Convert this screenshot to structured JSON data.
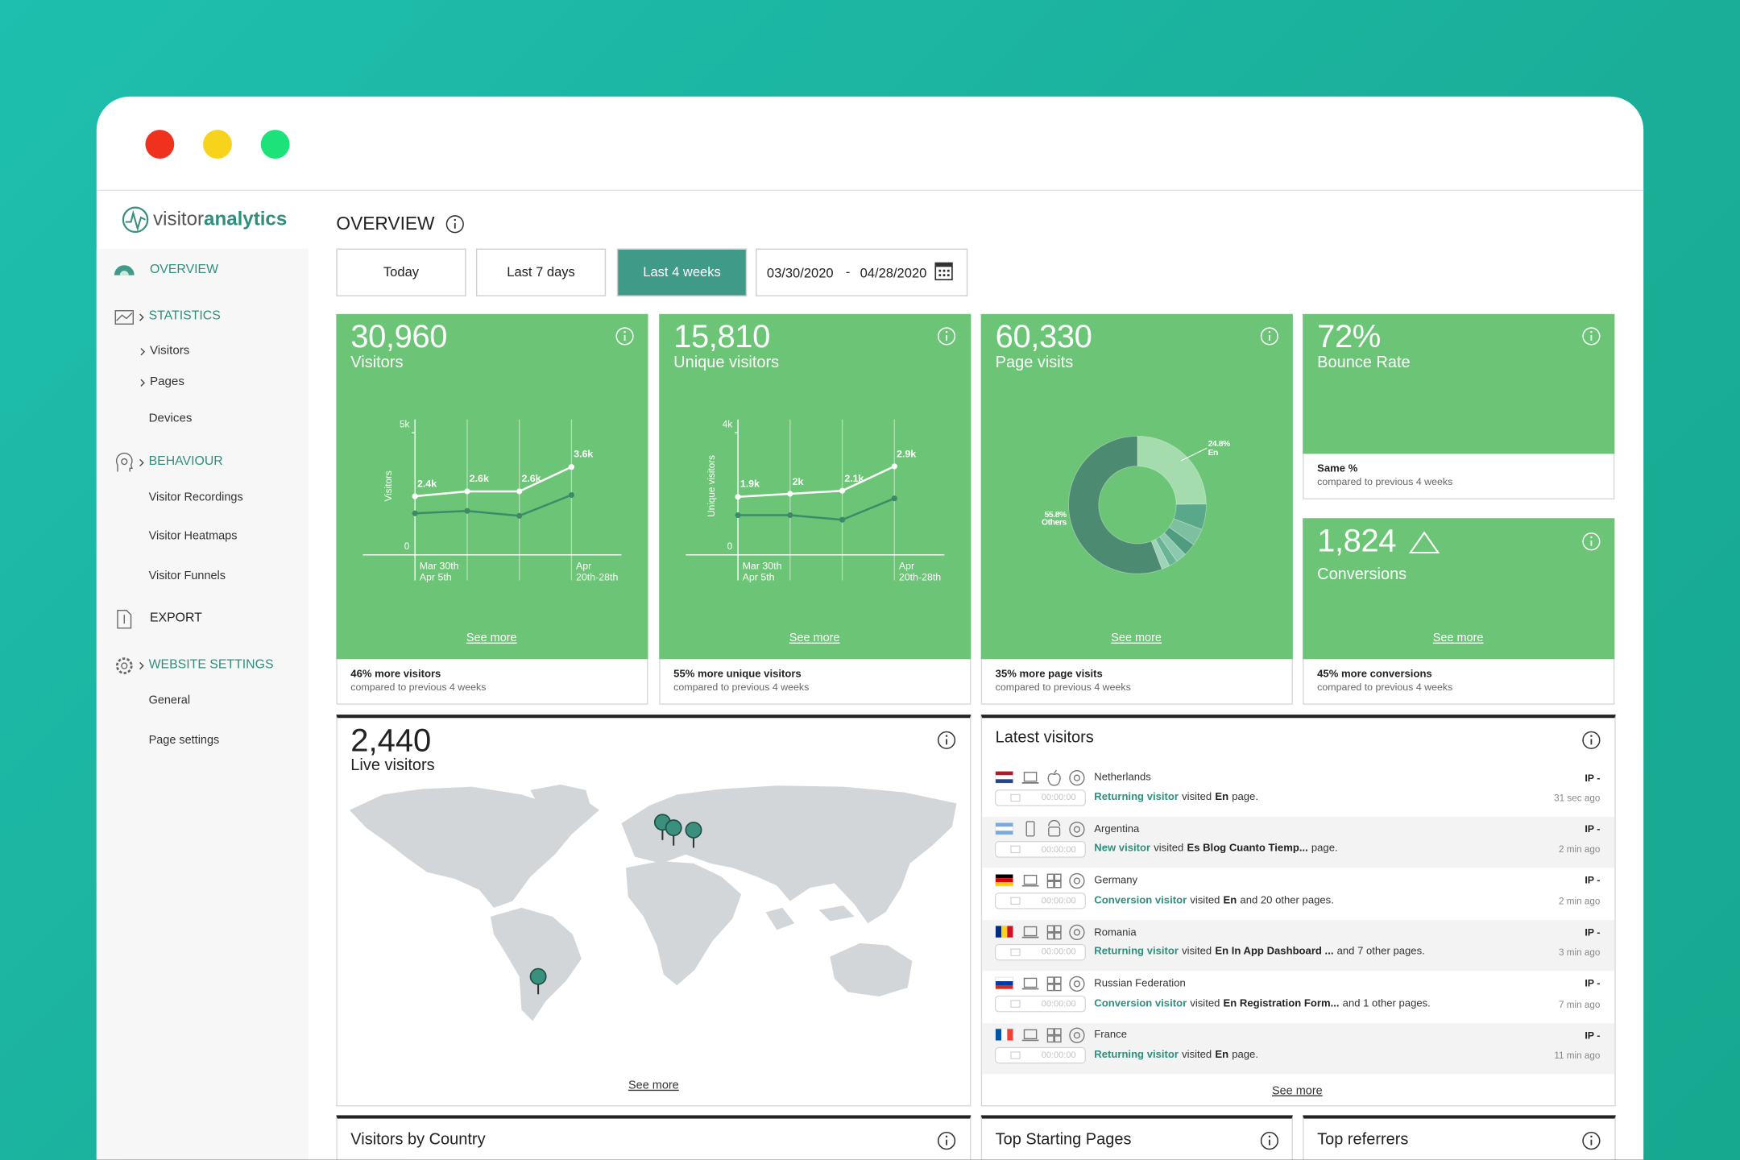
{
  "window": {
    "controls": [
      "#f0311e",
      "#f8d31c",
      "#1de27a"
    ]
  },
  "logo": {
    "light": "visitor",
    "bold": "analytics"
  },
  "sidebar": [
    {
      "label": "OVERVIEW",
      "kind": "section"
    },
    {
      "label": "STATISTICS",
      "kind": "section"
    },
    {
      "label": "Visitors",
      "kind": "item"
    },
    {
      "label": "Pages",
      "kind": "item"
    },
    {
      "label": "Devices",
      "kind": "item"
    },
    {
      "label": "BEHAVIOUR",
      "kind": "section"
    },
    {
      "label": "Visitor Recordings",
      "kind": "item"
    },
    {
      "label": "Visitor Heatmaps",
      "kind": "item"
    },
    {
      "label": "Visitor Funnels",
      "kind": "item"
    },
    {
      "label": "EXPORT",
      "kind": "section"
    },
    {
      "label": "WEBSITE SETTINGS",
      "kind": "section"
    },
    {
      "label": "General",
      "kind": "item"
    },
    {
      "label": "Page settings",
      "kind": "item"
    }
  ],
  "header": {
    "title": "OVERVIEW"
  },
  "filters": {
    "buttons": [
      {
        "label": "Today"
      },
      {
        "label": "Last 7 days"
      },
      {
        "label": "Last 4 weeks",
        "active": true
      }
    ],
    "date_from": "03/30/2020",
    "separator": "-",
    "date_to": "04/28/2020"
  },
  "cards": [
    {
      "value": "30,960",
      "label": "Visitors",
      "link": "See more",
      "footer_bold": "46% more visitors",
      "footer": "compared to previous 4 weeks",
      "chart": {
        "type": "line",
        "y_label": "Visitors",
        "categories": [
          "Mar 30th\nApr 5th",
          null,
          null,
          "Apr\n20th-28th"
        ],
        "ylim": [
          0,
          5000
        ],
        "yticks": [
          0,
          {
            "value": 5000,
            "label": "5k"
          }
        ],
        "series": [
          {
            "color": "#ffffff",
            "values": [
              2400,
              2600,
              2600,
              3600
            ],
            "value_labels": [
              "2.4k",
              "2.6k",
              "2.6k",
              "3.6k"
            ]
          },
          {
            "color": "#3d8a6a",
            "values": [
              1700,
              1800,
              1600,
              2450
            ]
          }
        ]
      }
    },
    {
      "value": "15,810",
      "label": "Unique visitors",
      "link": "See more",
      "footer_bold": "55% more unique visitors",
      "footer": "compared to previous 4 weeks",
      "chart": {
        "type": "line",
        "y_label": "Unique visitors",
        "categories": [
          "Mar 30th\nApr 5th",
          null,
          null,
          "Apr\n20th-28th"
        ],
        "ylim": [
          0,
          4000
        ],
        "yticks": [
          0,
          {
            "value": 4000,
            "label": "4k"
          }
        ],
        "series": [
          {
            "color": "#ffffff",
            "values": [
              1900,
              2000,
              2100,
              2900
            ],
            "value_labels": [
              "1.9k",
              "2k",
              "2.1k",
              "2.9k"
            ]
          },
          {
            "color": "#3d8a6a",
            "values": [
              1300,
              1300,
              1150,
              1850
            ]
          }
        ]
      }
    },
    {
      "value": "60,330",
      "label": "Page visits",
      "link": "See more",
      "footer_bold": "35% more page visits",
      "footer": "compared to previous 4 weeks",
      "chart": {
        "type": "pie",
        "categories": [
          "En",
          null,
          null,
          null,
          null,
          null,
          null,
          "Others"
        ],
        "values": [
          24.8,
          6,
          4,
          3,
          2.5,
          2,
          1.9,
          55.8
        ],
        "value_labels": [
          "24.8%",
          null,
          null,
          null,
          null,
          null,
          null,
          "55.8%"
        ],
        "colors": [
          "#a4dcae",
          "#5aa88a",
          "#7cc0a0",
          "#4f9c80",
          "#8ccab0",
          "#6ab496",
          "#9ed3b9",
          "#4c8b71"
        ]
      }
    },
    {
      "value": "72%",
      "label": "Bounce Rate",
      "footer_bold": "Same %",
      "footer": "compared to previous 4 weeks"
    },
    {
      "value": "1,824",
      "label": "Conversions",
      "link": "See more",
      "footer_bold": "45% more conversions",
      "footer": "compared to previous 4 weeks"
    }
  ],
  "live": {
    "value": "2,440",
    "label": "Live visitors",
    "link": "See more"
  },
  "latest": {
    "title": "Latest visitors",
    "link": "See more",
    "rows": [
      {
        "flag": [
          "#ae1c28",
          "#ffffff",
          "#21468b"
        ],
        "flag_dir": "h",
        "device": "desktop",
        "os": "apple",
        "country": "Netherlands",
        "ip": "IP -",
        "duration": "00:00:00",
        "type": "Returning visitor",
        "verb": "visited",
        "page": "En",
        "rest": "page.",
        "ago": "31 sec ago"
      },
      {
        "flag": [
          "#74acdf",
          "#ffffff",
          "#74acdf"
        ],
        "flag_dir": "h",
        "device": "mobile",
        "os": "android",
        "country": "Argentina",
        "ip": "IP -",
        "duration": "00:00:00",
        "type": "New visitor",
        "verb": "visited",
        "page": "Es Blog Cuanto Tiemp...",
        "rest": "page.",
        "ago": "2 min ago"
      },
      {
        "flag": [
          "#000000",
          "#dd0000",
          "#ffce00"
        ],
        "flag_dir": "h",
        "device": "desktop",
        "os": "windows",
        "country": "Germany",
        "ip": "IP -",
        "duration": "00:00:00",
        "type": "Conversion visitor",
        "verb": "visited",
        "page": "En",
        "rest": "and 20 other pages.",
        "ago": "2 min ago"
      },
      {
        "flag": [
          "#002b7f",
          "#fcd116",
          "#ce1126"
        ],
        "flag_dir": "v",
        "device": "desktop",
        "os": "windows",
        "country": "Romania",
        "ip": "IP -",
        "duration": "00:00:00",
        "type": "Returning visitor",
        "verb": "visited",
        "page": "En In App Dashboard ...",
        "rest": "and 7 other pages.",
        "ago": "3 min ago"
      },
      {
        "flag": [
          "#ffffff",
          "#0039a6",
          "#d52b1e"
        ],
        "flag_dir": "h",
        "device": "desktop",
        "os": "windows",
        "country": "Russian Federation",
        "ip": "IP -",
        "duration": "00:00:00",
        "type": "Conversion visitor",
        "verb": "visited",
        "page": "En Registration Form...",
        "rest": "and 1 other pages.",
        "ago": "7 min ago"
      },
      {
        "flag": [
          "#0055a4",
          "#ffffff",
          "#ef4135"
        ],
        "flag_dir": "v",
        "device": "desktop",
        "os": "windows",
        "country": "France",
        "ip": "IP -",
        "duration": "00:00:00",
        "type": "Returning visitor",
        "verb": "visited",
        "page": "En",
        "rest": "page.",
        "ago": "11 min ago"
      }
    ]
  },
  "panels": [
    {
      "title": "Visitors by Country"
    },
    {
      "title": "Top Starting Pages"
    },
    {
      "title": "Top referrers"
    }
  ]
}
